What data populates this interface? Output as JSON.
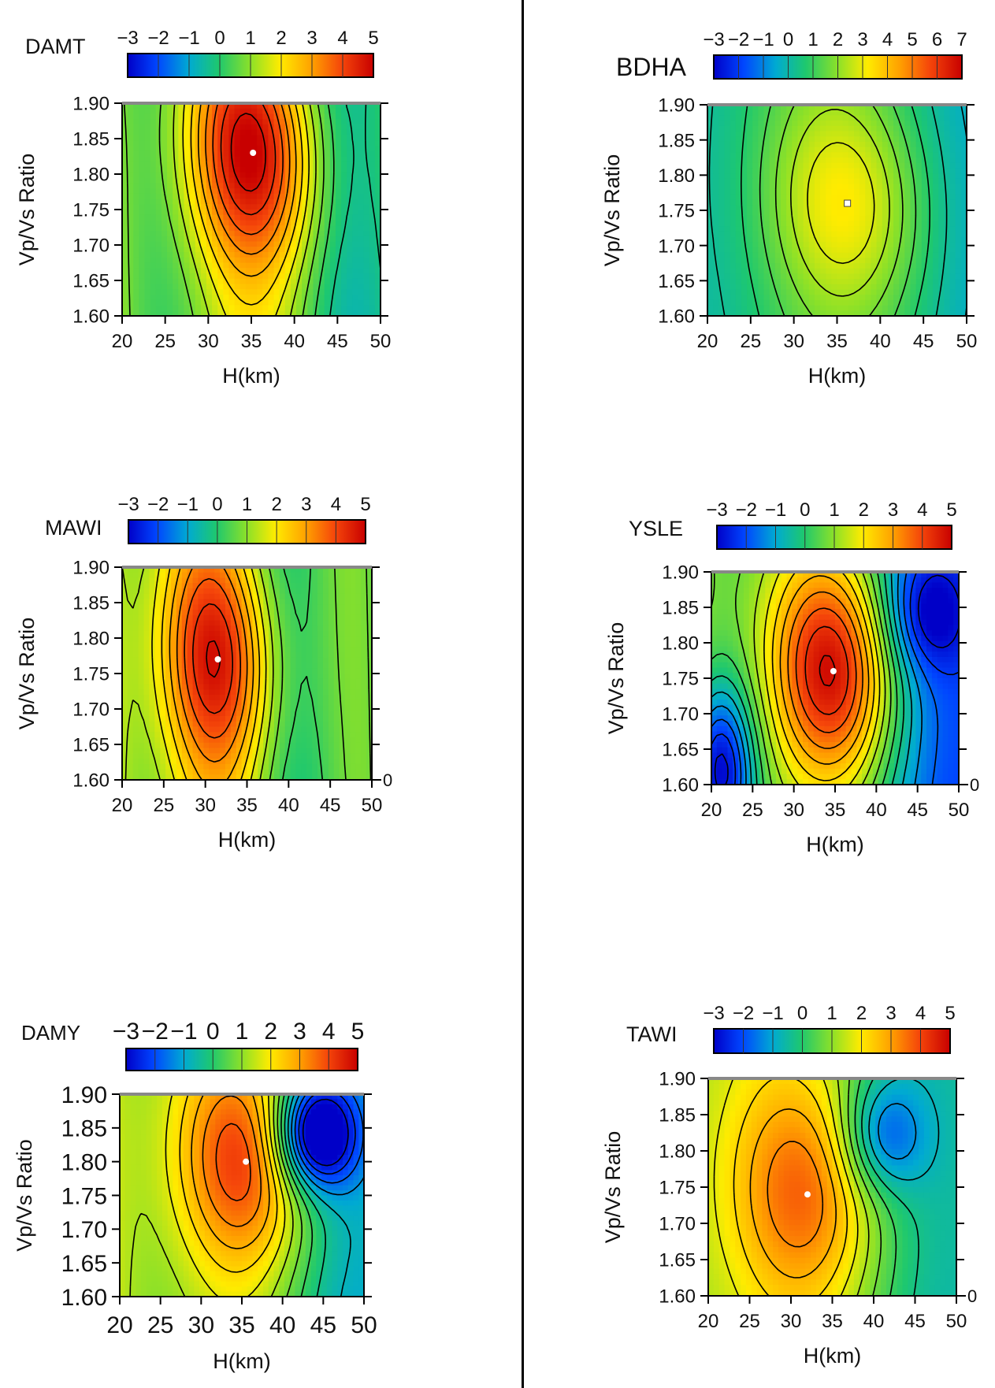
{
  "chart_data": [
    {
      "type": "heatmap",
      "station": "DAMT",
      "xlabel": "H(km)",
      "ylabel": "Vp/Vs Ratio",
      "xlim": [
        20,
        50
      ],
      "ylim": [
        1.6,
        1.9
      ],
      "x_ticks": [
        "20",
        "25",
        "30",
        "35",
        "40",
        "45",
        "50"
      ],
      "y_ticks": [
        "1.90",
        "1.85",
        "1.80",
        "1.75",
        "1.70",
        "1.65",
        "1.60"
      ],
      "colorbar_ticks": [
        "−3",
        "−2",
        "−1",
        "0",
        "1",
        "2",
        "3",
        "4",
        "5"
      ],
      "colorbar_range": [
        -3,
        5
      ],
      "best_fit": {
        "h": 35.2,
        "k": 1.83
      },
      "peak_value": 4.2,
      "zero_label": ""
    },
    {
      "type": "heatmap",
      "station": "BDHA",
      "xlabel": "H(km)",
      "ylabel": "Vp/Vs Ratio",
      "xlim": [
        20,
        50
      ],
      "ylim": [
        1.6,
        1.9
      ],
      "x_ticks": [
        "20",
        "25",
        "30",
        "35",
        "40",
        "45",
        "50"
      ],
      "y_ticks": [
        "1.90",
        "1.85",
        "1.80",
        "1.75",
        "1.70",
        "1.65",
        "1.60"
      ],
      "colorbar_ticks": [
        "−3",
        "−2",
        "−1",
        "0",
        "1",
        "2",
        "3",
        "4",
        "5",
        "6",
        "7"
      ],
      "colorbar_range": [
        -3,
        7
      ],
      "best_fit": {
        "h": 36.2,
        "k": 1.76
      },
      "peak_value": 2.6,
      "zero_label": ""
    },
    {
      "type": "heatmap",
      "station": "MAWI",
      "xlabel": "H(km)",
      "ylabel": "Vp/Vs Ratio",
      "xlim": [
        20,
        50
      ],
      "ylim": [
        1.6,
        1.9
      ],
      "x_ticks": [
        "20",
        "25",
        "30",
        "35",
        "40",
        "45",
        "50"
      ],
      "y_ticks": [
        "1.90",
        "1.85",
        "1.80",
        "1.75",
        "1.70",
        "1.65",
        "1.60"
      ],
      "colorbar_ticks": [
        "−3",
        "−2",
        "−1",
        "0",
        "1",
        "2",
        "3",
        "4",
        "5"
      ],
      "colorbar_range": [
        -3,
        5
      ],
      "best_fit": {
        "h": 31.5,
        "k": 1.77
      },
      "peak_value": 3.8,
      "zero_label": "0"
    },
    {
      "type": "heatmap",
      "station": "YSLE",
      "xlabel": "H(km)",
      "ylabel": "Vp/Vs Ratio",
      "xlim": [
        20,
        50
      ],
      "ylim": [
        1.6,
        1.9
      ],
      "x_ticks": [
        "20",
        "25",
        "30",
        "35",
        "40",
        "45",
        "50"
      ],
      "y_ticks": [
        "1.90",
        "1.85",
        "1.80",
        "1.75",
        "1.70",
        "1.65",
        "1.60"
      ],
      "colorbar_ticks": [
        "−3",
        "−2",
        "−1",
        "0",
        "1",
        "2",
        "3",
        "4",
        "5"
      ],
      "colorbar_range": [
        -3,
        5
      ],
      "best_fit": {
        "h": 34.8,
        "k": 1.76
      },
      "peak_value": 4.2,
      "zero_label": "0"
    },
    {
      "type": "heatmap",
      "station": "DAMY",
      "xlabel": "H(km)",
      "ylabel": "Vp/Vs Ratio",
      "xlim": [
        20,
        50
      ],
      "ylim": [
        1.6,
        1.9
      ],
      "x_ticks": [
        "20",
        "25",
        "30",
        "35",
        "40",
        "45",
        "50"
      ],
      "y_ticks": [
        "1.90",
        "1.85",
        "1.80",
        "1.75",
        "1.70",
        "1.65",
        "1.60"
      ],
      "colorbar_ticks": [
        "−3",
        "−2",
        "−1",
        "0",
        "1",
        "2",
        "3",
        "4",
        "5"
      ],
      "colorbar_range": [
        -3,
        5
      ],
      "best_fit": {
        "h": 35.5,
        "k": 1.8
      },
      "peak_value": 3.6,
      "zero_label": ""
    },
    {
      "type": "heatmap",
      "station": "TAWI",
      "xlabel": "H(km)",
      "ylabel": "Vp/Vs Ratio",
      "xlim": [
        20,
        50
      ],
      "ylim": [
        1.6,
        1.9
      ],
      "x_ticks": [
        "20",
        "25",
        "30",
        "35",
        "40",
        "45",
        "50"
      ],
      "y_ticks": [
        "1.90",
        "1.85",
        "1.80",
        "1.75",
        "1.70",
        "1.65",
        "1.60"
      ],
      "colorbar_ticks": [
        "−3",
        "−2",
        "−1",
        "0",
        "1",
        "2",
        "3",
        "4",
        "5"
      ],
      "colorbar_range": [
        -3,
        5
      ],
      "best_fit": {
        "h": 32.0,
        "k": 1.74
      },
      "peak_value": 3.0,
      "zero_label": "0"
    }
  ]
}
